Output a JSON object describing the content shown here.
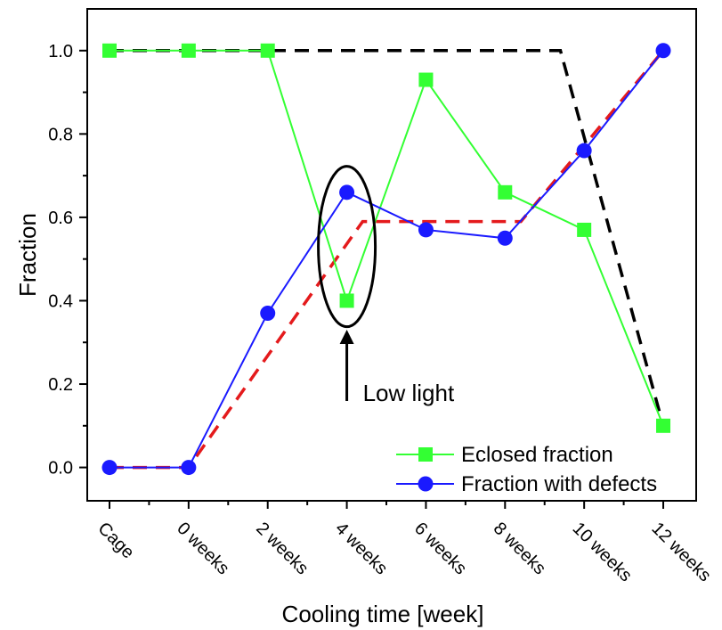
{
  "chart_data": {
    "type": "line",
    "xlabel": "Cooling time [week]",
    "ylabel": "Fraction",
    "categories": [
      "Cage",
      "0 weeks",
      "2 weeks",
      "4 weeks",
      "6 weeks",
      "8 weeks",
      "10 weeks",
      "12 weeks"
    ],
    "ylim": [
      -0.08,
      1.1
    ],
    "yticks": [
      "0.0",
      "0.2",
      "0.4",
      "0.6",
      "0.8",
      "1.0"
    ],
    "series": [
      {
        "name": "Eclosed fraction",
        "color": "#33ff33",
        "marker": "square",
        "values": [
          1.0,
          1.0,
          1.0,
          0.4,
          0.93,
          0.66,
          0.57,
          0.1
        ]
      },
      {
        "name": "Fraction with defects",
        "color": "#1a1aff",
        "marker": "circle",
        "values": [
          0.0,
          0.0,
          0.37,
          0.66,
          0.57,
          0.55,
          0.76,
          1.0
        ]
      }
    ],
    "fits": [
      {
        "color": "#000000",
        "dash": true,
        "points": [
          [
            0,
            1.0
          ],
          [
            3.7,
            1.0
          ],
          [
            3.7,
            1.0
          ],
          [
            3.7,
            1.0
          ],
          [
            3.7,
            1.0
          ],
          [
            3.7,
            1.0
          ],
          [
            3.7,
            1.0
          ],
          [
            3.7,
            1.0
          ],
          [
            3.7,
            1.0
          ],
          [
            3.7,
            1.0
          ],
          [
            3.7,
            1.0
          ],
          [
            3.7,
            1.0
          ],
          [
            3.7,
            1.0
          ],
          [
            3.7,
            1.0
          ],
          [
            3.7,
            1.0
          ],
          [
            3.7,
            1.0
          ],
          [
            3.7,
            1.0
          ],
          [
            3.7,
            1.0
          ],
          [
            3.7,
            1.0
          ],
          [
            3.7,
            1.0
          ],
          [
            3.7,
            1.0
          ],
          [
            3.7,
            1.0
          ],
          [
            3.7,
            1.0
          ],
          [
            3.7,
            1.0
          ],
          [
            3.7,
            1.0
          ],
          [
            3.7,
            1.0
          ],
          [
            3.7,
            1.0
          ],
          [
            3.7,
            1.0
          ],
          [
            3.7,
            1.0
          ],
          [
            3.7,
            1.0
          ],
          [
            3.7,
            1.0
          ],
          [
            3.7,
            1.0
          ],
          [
            3.7,
            1.0
          ],
          [
            3.7,
            1.0
          ],
          [
            3.7,
            1.0
          ],
          [
            3.7,
            1.0
          ],
          [
            3.7,
            1.0
          ],
          [
            3.7,
            1.0
          ],
          [
            3.7,
            1.0
          ],
          [
            3.7,
            1.0
          ],
          [
            3.7,
            1.0
          ],
          [
            3.7,
            1.0
          ],
          [
            3.7,
            1.0
          ],
          [
            3.7,
            1.0
          ],
          [
            3.7,
            1.0
          ],
          [
            3.7,
            1.0
          ],
          [
            3.7,
            1.0
          ],
          [
            3.7,
            1.0
          ],
          [
            3.7,
            1.0
          ],
          [
            3.7,
            1.0
          ],
          [
            3.7,
            1.0
          ],
          [
            3.7,
            1.0
          ],
          [
            3.7,
            1.0
          ],
          [
            3.7,
            1.0
          ],
          [
            3.7,
            1.0
          ],
          [
            3.7,
            1.0
          ],
          [
            3.7,
            1.0
          ],
          [
            3.7,
            1.0
          ],
          [
            3.7,
            1.0
          ],
          [
            3.7,
            1.0
          ],
          [
            3.7,
            1.0
          ],
          [
            3.7,
            1.0
          ],
          [
            3.7,
            1.0
          ],
          [
            3.7,
            1.0
          ],
          [
            3.7,
            1.0
          ],
          [
            3.7,
            1.0
          ],
          [
            3.7,
            1.0
          ],
          [
            3.7,
            1.0
          ],
          [
            3.7,
            1.0
          ],
          [
            3.7,
            1.0
          ],
          [
            3.7,
            1.0
          ],
          [
            3.7,
            1.0
          ],
          [
            3.7,
            1.0
          ],
          [
            3.7,
            1.0
          ],
          [
            3.7,
            1.0
          ],
          [
            3.7,
            1.0
          ],
          [
            3.7,
            1.0
          ],
          [
            3.7,
            1.0
          ],
          [
            3.7,
            1.0
          ],
          [
            3.7,
            1.0
          ],
          [
            3.7,
            1.0
          ],
          [
            3.7,
            1.0
          ],
          [
            3.7,
            1.0
          ],
          [
            3.7,
            1.0
          ],
          [
            3.7,
            1.0
          ],
          [
            3.7,
            1.0
          ],
          [
            3.7,
            1.0
          ],
          [
            3.7,
            1.0
          ],
          [
            3.7,
            1.0
          ],
          [
            3.7,
            1.0
          ],
          [
            3.7,
            1.0
          ],
          [
            3.7,
            1.0
          ],
          [
            3.7,
            1.0
          ],
          [
            3.7,
            1.0
          ],
          [
            3.7,
            1.0
          ],
          [
            3.7,
            1.0
          ],
          [
            3.7,
            1.0
          ],
          [
            3.7,
            1.0
          ],
          [
            3.7,
            1.0
          ],
          [
            3.7,
            1.0
          ]
        ]
      },
      {
        "color": "#e41a1c",
        "dash": true,
        "points": [
          [
            0,
            0.0
          ],
          [
            1.0,
            0.0
          ],
          [
            3.2,
            0.59
          ],
          [
            5.0,
            0.59
          ],
          [
            5.2,
            0.59
          ],
          [
            7.0,
            1.0
          ]
        ]
      }
    ],
    "annotations": [
      {
        "text": "Low light",
        "type": "arrow-with-ellipse",
        "x": 3,
        "ellipse_center": 0.53
      }
    ],
    "legend": "bottom-right",
    "grid": false
  }
}
